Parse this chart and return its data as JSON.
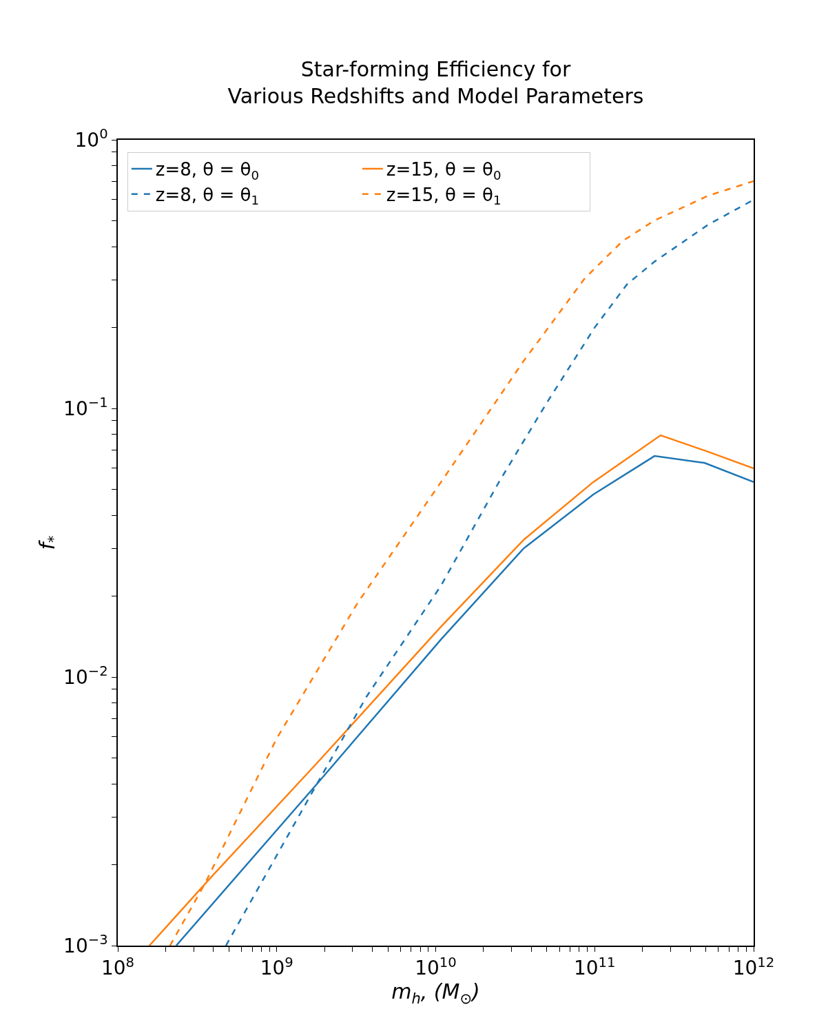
{
  "chart_data": {
    "type": "line",
    "title": "Star-forming Efficiency for\nVarious Redshifts and Model Parameters",
    "xlabel": "m$_{h}$, (M$_{⊙}$)",
    "ylabel": "f$_{*}$",
    "log": "xy",
    "legend": "top left",
    "marker": "none",
    "xlim": [
      100000000.0,
      1000000000000.0
    ],
    "ylim": [
      0.001,
      1
    ],
    "xticks": [
      {
        "value": 100000000.0,
        "label": "10$^{8}$"
      },
      {
        "value": 200000000.0,
        "label": null
      },
      {
        "value": 300000000.0,
        "label": null
      },
      {
        "value": 400000000.0,
        "label": null
      },
      {
        "value": 500000000.0,
        "label": null
      },
      {
        "value": 600000000.0,
        "label": null
      },
      {
        "value": 700000000.0,
        "label": null
      },
      {
        "value": 800000000.0,
        "label": null
      },
      {
        "value": 900000000.0,
        "label": null
      },
      {
        "value": 1000000000.0,
        "label": "10$^{9}$"
      },
      {
        "value": 2000000000.0,
        "label": null
      },
      {
        "value": 3000000000.0,
        "label": null
      },
      {
        "value": 4000000000.0,
        "label": null
      },
      {
        "value": 5000000000.0,
        "label": null
      },
      {
        "value": 6000000000.0,
        "label": null
      },
      {
        "value": 7000000000.0,
        "label": null
      },
      {
        "value": 8000000000.0,
        "label": null
      },
      {
        "value": 9000000000.0,
        "label": null
      },
      {
        "value": 10000000000.0,
        "label": "10$^{10}$"
      },
      {
        "value": 20000000000.0,
        "label": null
      },
      {
        "value": 30000000000.0,
        "label": null
      },
      {
        "value": 40000000000.0,
        "label": null
      },
      {
        "value": 50000000000.0,
        "label": null
      },
      {
        "value": 60000000000.0,
        "label": null
      },
      {
        "value": 70000000000.0,
        "label": null
      },
      {
        "value": 80000000000.0,
        "label": null
      },
      {
        "value": 90000000000.0,
        "label": null
      },
      {
        "value": 100000000000.0,
        "label": "10$^{11}$"
      },
      {
        "value": 200000000000.0,
        "label": null
      },
      {
        "value": 300000000000.0,
        "label": null
      },
      {
        "value": 400000000000.0,
        "label": null
      },
      {
        "value": 500000000000.0,
        "label": null
      },
      {
        "value": 600000000000.0,
        "label": null
      },
      {
        "value": 700000000000.0,
        "label": null
      },
      {
        "value": 800000000000.0,
        "label": null
      },
      {
        "value": 900000000000.0,
        "label": null
      },
      {
        "value": 1000000000000.0,
        "label": "10$^{12}$"
      }
    ],
    "yticks": [
      {
        "value": 0.001,
        "label": "10$^{−3}$"
      },
      {
        "value": 0.002,
        "label": null
      },
      {
        "value": 0.003,
        "label": null
      },
      {
        "value": 0.004,
        "label": null
      },
      {
        "value": 0.005,
        "label": null
      },
      {
        "value": 0.006,
        "label": null
      },
      {
        "value": 0.007,
        "label": null
      },
      {
        "value": 0.008,
        "label": null
      },
      {
        "value": 0.009,
        "label": null
      },
      {
        "value": 0.01,
        "label": "10$^{−2}$"
      },
      {
        "value": 0.02,
        "label": null
      },
      {
        "value": 0.03,
        "label": null
      },
      {
        "value": 0.04,
        "label": null
      },
      {
        "value": 0.05,
        "label": null
      },
      {
        "value": 0.06,
        "label": null
      },
      {
        "value": 0.07,
        "label": null
      },
      {
        "value": 0.08,
        "label": null
      },
      {
        "value": 0.09,
        "label": null
      },
      {
        "value": 0.1,
        "label": "10$^{−1}$"
      },
      {
        "value": 0.2,
        "label": null
      },
      {
        "value": 0.3,
        "label": null
      },
      {
        "value": 0.4,
        "label": null
      },
      {
        "value": 0.5,
        "label": null
      },
      {
        "value": 0.6,
        "label": null
      },
      {
        "value": 0.7,
        "label": null
      },
      {
        "value": 0.8,
        "label": null
      },
      {
        "value": 0.9,
        "label": null
      },
      {
        "value": 1,
        "label": "10$^{0}$"
      }
    ],
    "series": [
      {
        "name": "z=8, θ = θ$_{0}$",
        "color": "#1f77b4",
        "line_style": "solid",
        "x": [
          233000000.0,
          1790000000.0,
          10800000000.0,
          35700000000.0,
          98000000000.0,
          238000000000.0,
          490000000000.0,
          1000000000000.0
        ],
        "values": [
          0.001,
          0.004,
          0.0138,
          0.0301,
          0.0478,
          0.0665,
          0.0627,
          0.0532
        ]
      },
      {
        "name": "z=15, θ = θ$_{0}$",
        "color": "#ff7f0e",
        "line_style": "solid",
        "x": [
          158000000.0,
          377000000.0,
          1790000000.0,
          10800000000.0,
          35700000000.0,
          98000000000.0,
          260000000000.0,
          520000000000.0,
          1000000000000.0
        ],
        "values": [
          0.001,
          0.00177,
          0.00478,
          0.0154,
          0.0324,
          0.0532,
          0.0794,
          0.0689,
          0.0598
        ]
      },
      {
        "name": "z=8, θ = θ$_{1}$",
        "color": "#1f77b4",
        "line_style": "dashed",
        "x": [
          479000000.0,
          1790000000.0,
          3660000000.0,
          10800000000.0,
          25000000000.0,
          50000000000.0,
          100000000000.0,
          160000000000.0,
          238000000000.0,
          520000000000.0,
          1000000000000.0
        ],
        "values": [
          0.001,
          0.004,
          0.00843,
          0.0219,
          0.0532,
          0.105,
          0.2,
          0.29,
          0.352,
          0.484,
          0.598
        ]
      },
      {
        "name": "z=15, θ = θ$_{1}$",
        "color": "#ff7f0e",
        "line_style": "dashed",
        "x": [
          213000000.0,
          355000000.0,
          1000000000.0,
          3250000000.0,
          10800000000.0,
          35700000000.0,
          86700000000.0,
          150000000000.0,
          238000000000.0,
          520000000000.0,
          1000000000000.0
        ],
        "values": [
          0.001,
          0.00171,
          0.00591,
          0.019,
          0.0532,
          0.15,
          0.305,
          0.42,
          0.501,
          0.62,
          0.702
        ]
      }
    ]
  }
}
